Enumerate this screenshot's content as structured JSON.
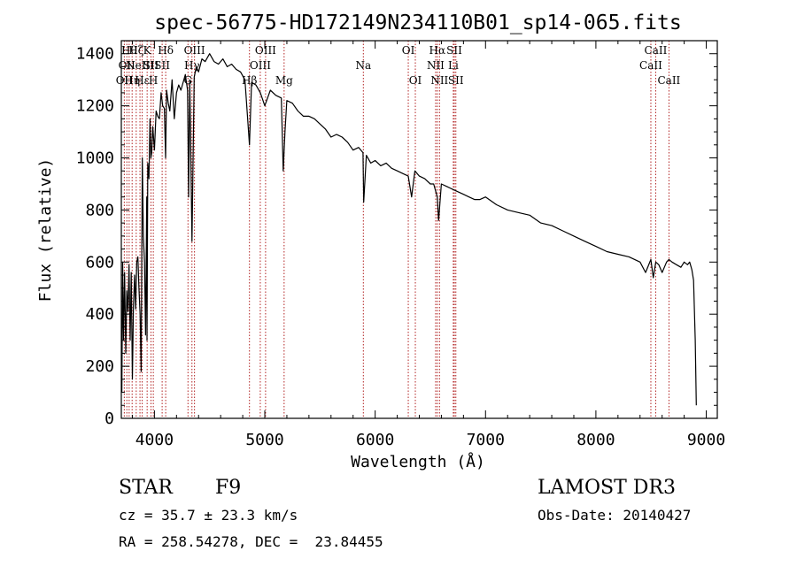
{
  "chart_data": {
    "type": "line",
    "title": "spec-56775-HD172149N234110B01_sp14-065.fits",
    "xlabel": "Wavelength (Å)",
    "ylabel": "Flux (relative)",
    "xlim": [
      3700,
      9100
    ],
    "ylim": [
      0,
      1450
    ],
    "xticks": [
      4000,
      5000,
      6000,
      7000,
      8000,
      9000
    ],
    "yticks": [
      0,
      200,
      400,
      600,
      800,
      1000,
      1200,
      1400
    ],
    "line_color": "#000000",
    "marker_color": "#b22222",
    "series": [
      {
        "name": "flux",
        "x": [
          3705,
          3712,
          3720,
          3730,
          3740,
          3750,
          3760,
          3770,
          3780,
          3790,
          3800,
          3810,
          3820,
          3830,
          3840,
          3850,
          3860,
          3870,
          3880,
          3890,
          3900,
          3910,
          3920,
          3930,
          3933,
          3940,
          3950,
          3960,
          3968,
          3975,
          3985,
          4000,
          4015,
          4030,
          4045,
          4060,
          4075,
          4090,
          4101,
          4110,
          4125,
          4140,
          4160,
          4180,
          4200,
          4220,
          4240,
          4260,
          4280,
          4300,
          4310,
          4320,
          4340,
          4360,
          4380,
          4400,
          4430,
          4460,
          4500,
          4540,
          4580,
          4620,
          4660,
          4700,
          4740,
          4780,
          4820,
          4861,
          4880,
          4920,
          4960,
          5000,
          5050,
          5100,
          5150,
          5167,
          5183,
          5200,
          5250,
          5300,
          5350,
          5400,
          5450,
          5500,
          5550,
          5600,
          5650,
          5700,
          5750,
          5800,
          5850,
          5890,
          5896,
          5920,
          5960,
          6000,
          6050,
          6100,
          6150,
          6200,
          6250,
          6300,
          6330,
          6360,
          6400,
          6450,
          6500,
          6530,
          6563,
          6575,
          6600,
          6650,
          6700,
          6750,
          6800,
          6850,
          6900,
          6950,
          7000,
          7100,
          7200,
          7300,
          7400,
          7500,
          7600,
          7700,
          7800,
          7900,
          8000,
          8100,
          8200,
          8300,
          8400,
          8450,
          8498,
          8520,
          8542,
          8570,
          8600,
          8640,
          8662,
          8690,
          8730,
          8770,
          8800,
          8830,
          8850,
          8870,
          8885,
          8900,
          8910
        ],
        "y": [
          100,
          600,
          300,
          560,
          250,
          490,
          410,
          590,
          300,
          560,
          150,
          430,
          550,
          420,
          600,
          620,
          500,
          400,
          180,
          1000,
          700,
          600,
          320,
          850,
          300,
          980,
          920,
          1150,
          1000,
          1020,
          1120,
          1030,
          1180,
          1160,
          1150,
          1250,
          1200,
          1190,
          1000,
          1260,
          1210,
          1180,
          1300,
          1150,
          1250,
          1280,
          1260,
          1290,
          1320,
          1260,
          850,
          1300,
          680,
          1310,
          1350,
          1330,
          1380,
          1370,
          1400,
          1370,
          1360,
          1380,
          1350,
          1360,
          1340,
          1330,
          1300,
          1050,
          1290,
          1280,
          1250,
          1200,
          1260,
          1240,
          1230,
          950,
          1100,
          1220,
          1210,
          1180,
          1160,
          1160,
          1150,
          1130,
          1110,
          1080,
          1090,
          1080,
          1060,
          1030,
          1040,
          1020,
          830,
          1010,
          980,
          990,
          970,
          980,
          960,
          950,
          940,
          930,
          850,
          950,
          930,
          920,
          900,
          900,
          850,
          760,
          900,
          890,
          880,
          870,
          860,
          850,
          840,
          840,
          850,
          820,
          800,
          790,
          780,
          750,
          740,
          720,
          700,
          680,
          660,
          640,
          630,
          620,
          600,
          560,
          610,
          540,
          600,
          590,
          560,
          600,
          610,
          600,
          590,
          580,
          600,
          590,
          600,
          570,
          530,
          300,
          50
        ]
      }
    ],
    "line_markers": [
      {
        "wl": 3727,
        "row": 2,
        "label": "OII"
      },
      {
        "wl": 3750,
        "row": 1,
        "label": "OII"
      },
      {
        "wl": 3771,
        "row": 0,
        "label": "Hθ"
      },
      {
        "wl": 3798,
        "row": 2,
        "label": "Hη"
      },
      {
        "wl": 3835,
        "row": 0,
        "label": "Hζ"
      },
      {
        "wl": 3869,
        "row": 1,
        "label": "NeIII"
      },
      {
        "wl": 3889,
        "row": 2,
        "label": "Hε"
      },
      {
        "wl": 3934,
        "row": 0,
        "label": "K"
      },
      {
        "wl": 3969,
        "row": 1,
        "label": "SII"
      },
      {
        "wl": 3990,
        "row": 2,
        "label": "H"
      },
      {
        "wl": 4102,
        "row": 0,
        "label": "Hδ"
      },
      {
        "wl": 4070,
        "row": 1,
        "label": "SII"
      },
      {
        "wl": 4304,
        "row": 2,
        "label": "G"
      },
      {
        "wl": 4340,
        "row": 1,
        "label": "Hγ"
      },
      {
        "wl": 4363,
        "row": 0,
        "label": "OIII"
      },
      {
        "wl": 4861,
        "row": 2,
        "label": "Hβ"
      },
      {
        "wl": 4959,
        "row": 1,
        "label": "OIII"
      },
      {
        "wl": 5007,
        "row": 0,
        "label": "OIII"
      },
      {
        "wl": 5175,
        "row": 2,
        "label": "Mg"
      },
      {
        "wl": 5893,
        "row": 1,
        "label": "Na"
      },
      {
        "wl": 6300,
        "row": 0,
        "label": "OI"
      },
      {
        "wl": 6364,
        "row": 2,
        "label": "OI"
      },
      {
        "wl": 6548,
        "row": 1,
        "label": "NII"
      },
      {
        "wl": 6563,
        "row": 0,
        "label": "Hα"
      },
      {
        "wl": 6583,
        "row": 2,
        "label": "NII"
      },
      {
        "wl": 6708,
        "row": 1,
        "label": "Li"
      },
      {
        "wl": 6717,
        "row": 0,
        "label": "SII"
      },
      {
        "wl": 6731,
        "row": 2,
        "label": "SII"
      },
      {
        "wl": 8498,
        "row": 1,
        "label": "CaII"
      },
      {
        "wl": 8542,
        "row": 0,
        "label": "CaII"
      },
      {
        "wl": 8662,
        "row": 2,
        "label": "CaII"
      }
    ]
  },
  "info": {
    "object_class": "STAR",
    "subclass": "F9",
    "cz": "cz = 35.7 ± 23.3 km/s",
    "coords": "RA = 258.54278, DEC =  23.84455",
    "survey": "LAMOST DR3",
    "obs_date": "Obs-Date: 20140427"
  }
}
